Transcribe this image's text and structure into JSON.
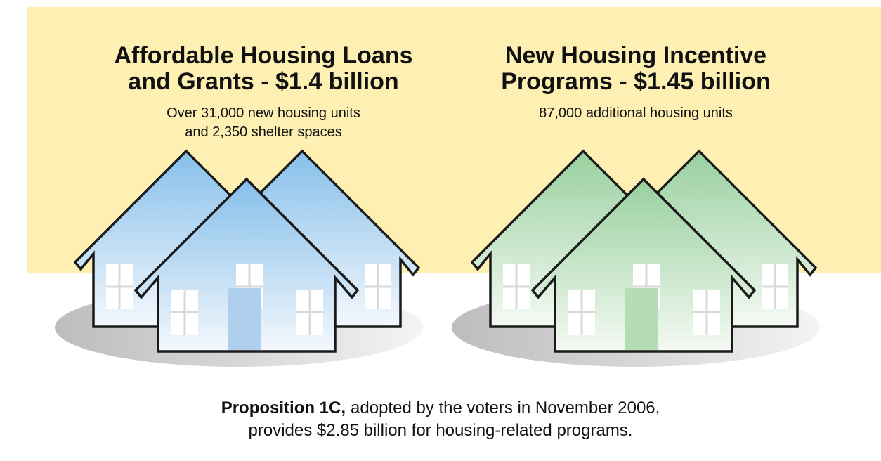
{
  "panels": [
    {
      "title_lines": [
        "Affordable Housing Loans",
        "and Grants - $1.4 billion"
      ],
      "subtitle_lines": [
        "Over 31,000 new housing units",
        "and 2,350 shelter spaces"
      ]
    },
    {
      "title_lines": [
        "New Housing Incentive",
        "Programs - $1.45 billion"
      ],
      "subtitle_lines": [
        "87,000 additional housing units"
      ]
    }
  ],
  "footer": {
    "lead": "Proposition 1C,",
    "line1_rest": "adopted by the voters in November 2006,",
    "line2": "provides $2.85 billion for housing-related programs."
  }
}
